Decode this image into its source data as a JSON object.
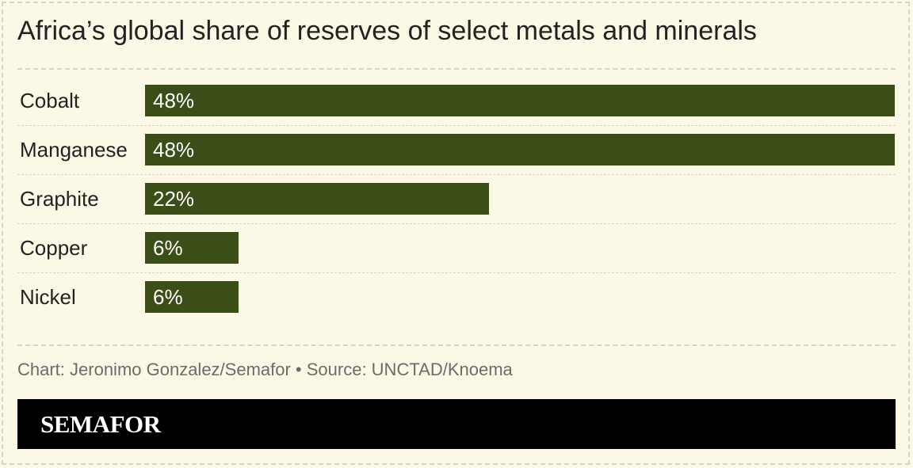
{
  "title": "Africa’s global share of reserves of select metals and minerals",
  "source": "Chart: Jeronimo Gonzalez/Semafor • Source: UNCTAD/Knoema",
  "footer": {
    "logo": "SEMAFOR"
  },
  "colors": {
    "background": "#fcf8e6",
    "bar": "#3b4e17",
    "footer": "#000000",
    "divider": "#d9d4c2"
  },
  "chart_data": {
    "type": "bar",
    "orientation": "horizontal",
    "title": "Africa’s global share of reserves of select metals and minerals",
    "categories": [
      "Cobalt",
      "Manganese",
      "Graphite",
      "Copper",
      "Nickel"
    ],
    "values": [
      48,
      48,
      22,
      6,
      6
    ],
    "value_labels": [
      "48%",
      "48%",
      "22%",
      "6%",
      "6%"
    ],
    "unit": "%",
    "xlim": [
      0,
      48
    ],
    "grid": false,
    "legend": "none"
  }
}
